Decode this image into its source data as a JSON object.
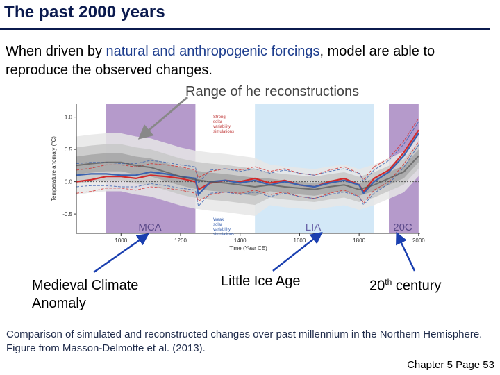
{
  "slide": {
    "title": "The past 2000 years",
    "intro_before": "When driven by ",
    "intro_highlight": "natural and anthropogenic forcings",
    "intro_after": ", model are able to reproduce the observed changes.",
    "range_label": "Range of he reconstructions",
    "callouts": {
      "mca": "Medieval Climate Anomaly",
      "lia": "Little Ice Age",
      "c20_number": "20",
      "c20_sup": "th",
      "c20_rest": " century"
    },
    "caption": "Comparison of simulated and reconstructed changes over past millennium in the Northern Hemisphere. Figure from Masson-Delmotte et al. (2013).",
    "footer": "Chapter 5 Page 53"
  },
  "chart_data": {
    "type": "line",
    "xlabel": "Time (Year CE)",
    "ylabel": "Temperature anomaly (°C)",
    "xlim": [
      850,
      2005
    ],
    "ylim": [
      -0.8,
      1.2
    ],
    "x_ticks": [
      1000,
      1200,
      1400,
      1600,
      1800,
      2000
    ],
    "y_ticks": [
      -0.5,
      0.0,
      0.5,
      1.0
    ],
    "y_tick_labels": [
      "-0.5",
      "0.0",
      "0.5",
      "1.0"
    ],
    "periods": [
      {
        "label": "MCA",
        "start": 950,
        "end": 1250,
        "color": "#b59acb"
      },
      {
        "label": "LIA",
        "start": 1450,
        "end": 1850,
        "color": "#d3e8f7"
      },
      {
        "label": "20C",
        "start": 1900,
        "end": 2000,
        "color": "#b59acb"
      }
    ],
    "annotations": {
      "strong": [
        "Strong",
        "solar",
        "variability",
        "simulations"
      ],
      "weak": [
        "Weak",
        "solar",
        "variability",
        "simulations"
      ]
    },
    "series": [
      {
        "name": "Strong solar variability simulations",
        "color": "#d42a2a",
        "x": [
          850,
          900,
          950,
          1000,
          1050,
          1100,
          1150,
          1200,
          1250,
          1260,
          1300,
          1350,
          1400,
          1450,
          1500,
          1550,
          1600,
          1650,
          1700,
          1750,
          1800,
          1815,
          1850,
          1900,
          1950,
          2000
        ],
        "values": [
          0.0,
          0.03,
          0.08,
          0.08,
          0.05,
          0.1,
          0.08,
          0.05,
          0.0,
          -0.12,
          -0.02,
          0.02,
          0.0,
          0.05,
          -0.02,
          0.02,
          -0.05,
          -0.08,
          0.0,
          0.05,
          -0.05,
          -0.15,
          0.05,
          0.18,
          0.45,
          0.8
        ]
      },
      {
        "name": "Weak solar variability simulations",
        "color": "#3a62b0",
        "x": [
          850,
          900,
          950,
          1000,
          1050,
          1100,
          1150,
          1200,
          1250,
          1260,
          1300,
          1350,
          1400,
          1450,
          1500,
          1550,
          1600,
          1650,
          1700,
          1750,
          1800,
          1815,
          1850,
          1900,
          1950,
          2000
        ],
        "values": [
          0.1,
          0.12,
          0.12,
          0.1,
          0.1,
          0.15,
          0.12,
          0.08,
          0.05,
          -0.2,
          0.0,
          0.02,
          -0.02,
          0.02,
          -0.05,
          0.0,
          -0.05,
          -0.08,
          -0.02,
          0.02,
          -0.05,
          -0.18,
          0.0,
          0.15,
          0.4,
          0.75
        ]
      },
      {
        "name": "Reconstructions",
        "color": "#555555",
        "x": [
          850,
          900,
          950,
          1000,
          1050,
          1100,
          1150,
          1200,
          1250,
          1300,
          1350,
          1400,
          1450,
          1500,
          1550,
          1600,
          1650,
          1700,
          1750,
          1800,
          1850,
          1900,
          1950,
          2000
        ],
        "values": [
          0.25,
          0.28,
          0.3,
          0.3,
          0.25,
          0.22,
          0.15,
          0.08,
          0.03,
          0.0,
          -0.02,
          -0.05,
          -0.08,
          -0.05,
          -0.08,
          -0.1,
          -0.12,
          -0.08,
          -0.05,
          -0.12,
          -0.05,
          0.05,
          0.15,
          0.4
        ]
      }
    ]
  }
}
